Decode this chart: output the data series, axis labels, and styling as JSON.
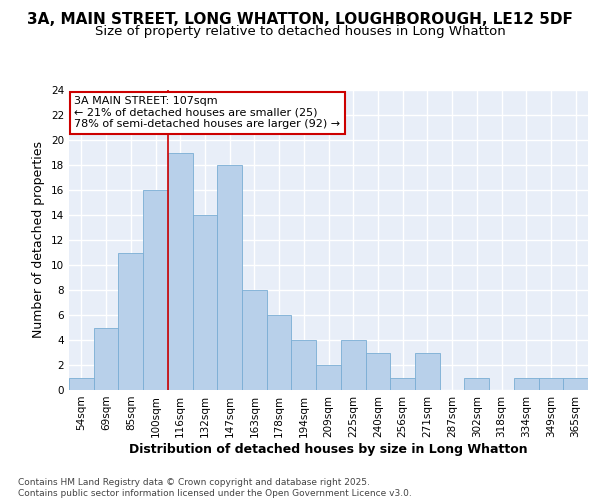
{
  "title": "3A, MAIN STREET, LONG WHATTON, LOUGHBOROUGH, LE12 5DF",
  "subtitle": "Size of property relative to detached houses in Long Whatton",
  "xlabel": "Distribution of detached houses by size in Long Whatton",
  "ylabel": "Number of detached properties",
  "categories": [
    "54sqm",
    "69sqm",
    "85sqm",
    "100sqm",
    "116sqm",
    "132sqm",
    "147sqm",
    "163sqm",
    "178sqm",
    "194sqm",
    "209sqm",
    "225sqm",
    "240sqm",
    "256sqm",
    "271sqm",
    "287sqm",
    "302sqm",
    "318sqm",
    "334sqm",
    "349sqm",
    "365sqm"
  ],
  "values": [
    1,
    5,
    11,
    16,
    19,
    14,
    18,
    8,
    6,
    4,
    2,
    4,
    3,
    1,
    3,
    0,
    1,
    0,
    1,
    1,
    1
  ],
  "bar_color": "#b8d0ea",
  "bar_edge_color": "#7aadd4",
  "vline_x_index": 3.5,
  "vline_color": "#cc0000",
  "annotation_line1": "3A MAIN STREET: 107sqm",
  "annotation_line2": "← 21% of detached houses are smaller (25)",
  "annotation_line3": "78% of semi-detached houses are larger (92) →",
  "annotation_box_color": "#ffffff",
  "annotation_box_edge_color": "#cc0000",
  "ylim": [
    0,
    24
  ],
  "yticks": [
    0,
    2,
    4,
    6,
    8,
    10,
    12,
    14,
    16,
    18,
    20,
    22,
    24
  ],
  "footer": "Contains HM Land Registry data © Crown copyright and database right 2025.\nContains public sector information licensed under the Open Government Licence v3.0.",
  "fig_bg_color": "#ffffff",
  "plot_bg_color": "#e8eef8",
  "grid_color": "#ffffff",
  "title_fontsize": 11,
  "subtitle_fontsize": 9.5,
  "axis_label_fontsize": 9,
  "tick_fontsize": 7.5,
  "footer_fontsize": 6.5,
  "annotation_fontsize": 8
}
